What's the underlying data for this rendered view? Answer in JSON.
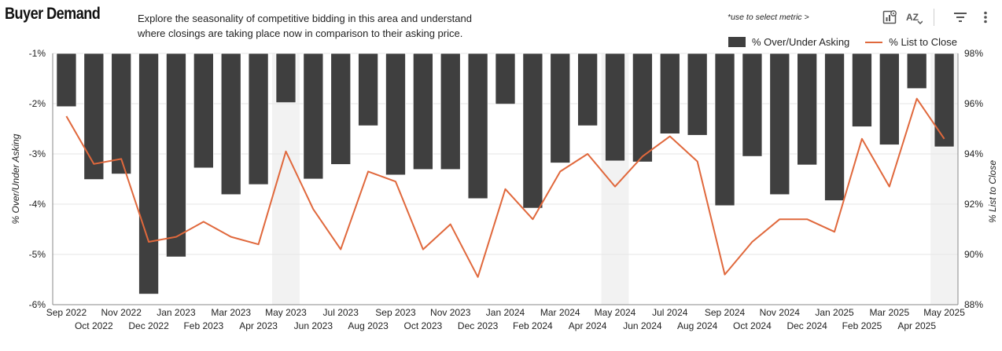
{
  "header": {
    "title": "Buyer Demand",
    "description_line1": "Explore the seasonality of competitive bidding in this area and understand",
    "description_line2": "where closings are taking place now in comparison to their asking price.",
    "metric_hint": "*use to select metric >"
  },
  "toolbar": {
    "icons": [
      "chart-settings-icon",
      "sort-az-icon",
      "filter-icon",
      "more-vertical-icon"
    ],
    "sort_label": "AZ"
  },
  "colors": {
    "bar": "#3f3f3f",
    "line": "#e0683c",
    "highlight": "#f2f2f2",
    "grid": "#e6e6e6"
  },
  "chart_data": {
    "type": "bar",
    "categories": [
      "Sep 2022",
      "Oct 2022",
      "Nov 2022",
      "Dec 2022",
      "Jan 2023",
      "Feb 2023",
      "Mar 2023",
      "Apr 2023",
      "May 2023",
      "Jun 2023",
      "Jul 2023",
      "Aug 2023",
      "Sep 2023",
      "Oct 2023",
      "Nov 2023",
      "Dec 2023",
      "Jan 2024",
      "Feb 2024",
      "Mar 2024",
      "Apr 2024",
      "May 2024",
      "Jun 2024",
      "Jul 2024",
      "Aug 2024",
      "Sep 2024",
      "Oct 2024",
      "Nov 2024",
      "Dec 2024",
      "Jan 2025",
      "Feb 2025",
      "Mar 2025",
      "Apr 2025",
      "May 2025"
    ],
    "highlighted_categories": [
      "May 2023",
      "May 2024",
      "May 2025"
    ],
    "series": [
      {
        "name": "% Over/Under Asking",
        "type": "bar",
        "axis": "left",
        "values": [
          -2.06,
          -3.51,
          -3.4,
          -5.79,
          -5.05,
          -3.28,
          -3.81,
          -3.61,
          -1.98,
          -3.5,
          -3.21,
          -2.44,
          -3.42,
          -3.31,
          -3.31,
          -3.89,
          -2.01,
          -4.08,
          -3.18,
          -2.44,
          -3.14,
          -3.16,
          -2.6,
          -2.63,
          -4.03,
          -3.05,
          -3.81,
          -3.22,
          -3.93,
          -2.46,
          -2.82,
          -1.7,
          -2.86
        ]
      },
      {
        "name": "% List to Close",
        "type": "line",
        "axis": "right",
        "values": [
          95.5,
          93.6,
          93.8,
          90.5,
          90.7,
          91.3,
          90.7,
          90.4,
          94.1,
          91.8,
          90.2,
          93.3,
          92.9,
          90.2,
          91.2,
          89.1,
          92.6,
          91.4,
          93.3,
          94.0,
          92.7,
          93.9,
          94.7,
          93.7,
          89.2,
          90.5,
          91.4,
          91.4,
          90.9,
          94.6,
          92.7,
          96.2,
          94.6
        ]
      }
    ],
    "y_left": {
      "label": "% Over/Under Asking",
      "min": -6,
      "max": -1,
      "ticks": [
        "-1%",
        "-2%",
        "-3%",
        "-4%",
        "-5%",
        "-6%"
      ]
    },
    "y_right": {
      "label": "% List to Close",
      "min": 88,
      "max": 98,
      "ticks": [
        "98%",
        "96%",
        "94%",
        "92%",
        "90%",
        "88%"
      ]
    },
    "legend_position": "top-right",
    "grid": true
  }
}
